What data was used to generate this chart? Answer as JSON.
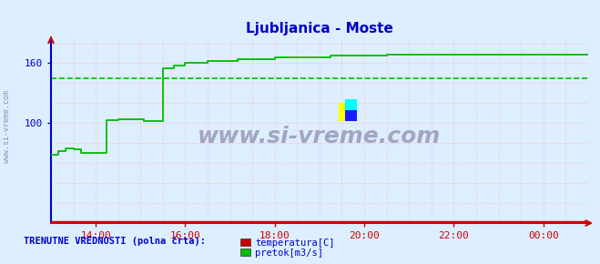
{
  "title": "Ljubljanica - Moste",
  "title_color": "#0000cc",
  "bg_color": "#ddeeff",
  "plot_bg_color": "#ddeeff",
  "ylim": [
    0,
    185
  ],
  "yticks": [
    100,
    160
  ],
  "ytick_labels": [
    "100",
    "160"
  ],
  "xlim": [
    0,
    288
  ],
  "xtick_positions": [
    24,
    72,
    120,
    168,
    216,
    264
  ],
  "xtick_labels": [
    "14:00",
    "16:00",
    "18:00",
    "20:00",
    "22:00",
    "00:00"
  ],
  "grid_color_h": "#ffbbbb",
  "grid_color_v": "#ffbbbb",
  "legend_title": "TRENUTNE VREDNOSTI (polna črta):",
  "legend_title_color": "#0000cc",
  "legend_items": [
    {
      "label": "temperatura[C]",
      "color": "#cc0000"
    },
    {
      "label": "pretok[m3/s]",
      "color": "#00bb00"
    }
  ],
  "watermark": "www.si-vreme.com",
  "watermark_color": "#9999bb",
  "avg_pretok_value": 145,
  "avg_pretok_color": "#00bb00",
  "pretok_color": "#00bb00",
  "temp_color": "#cc0000",
  "left_spine_color": "#0000cc",
  "bottom_spine_color": "#cc0000"
}
